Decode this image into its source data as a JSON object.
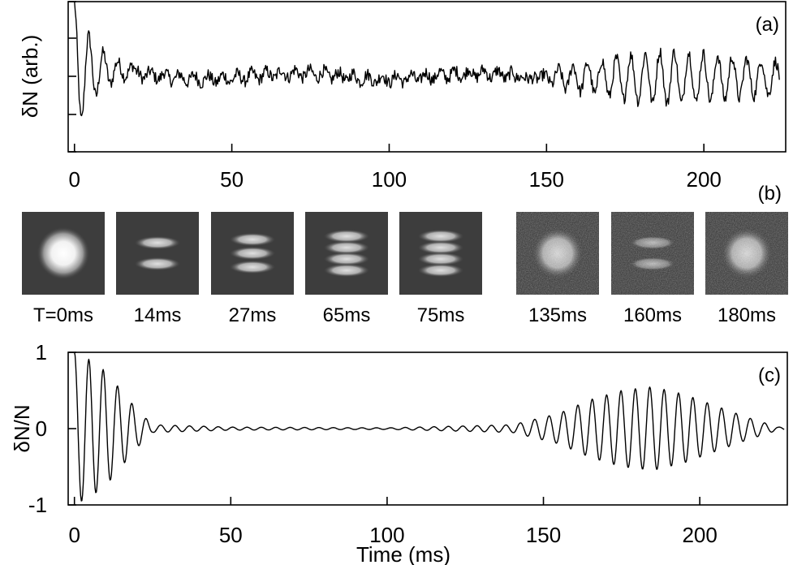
{
  "chart_data": [
    {
      "panel": "(a)",
      "type": "line",
      "ylabel": "δN (arb.)",
      "xlim": [
        -2,
        226
      ],
      "xticks": [
        0,
        50,
        100,
        150,
        200
      ],
      "xtick_labels": [
        "0",
        "50",
        "100",
        "150",
        "200"
      ],
      "series": [
        {
          "x": [
            0,
            2,
            5,
            8,
            11,
            14,
            18,
            25,
            35,
            50,
            70,
            90,
            110,
            130,
            145,
            155,
            165,
            175,
            187,
            200,
            215,
            224
          ],
          "y": [
            0.9,
            -0.9,
            0.65,
            -0.5,
            0.4,
            0.15,
            0.0,
            -0.05,
            -0.02,
            0.0,
            0.06,
            0.04,
            0.02,
            0.0,
            -0.02,
            0.2,
            0.3,
            0.4,
            0.5,
            0.45,
            0.35,
            0.3
          ]
        }
      ]
    },
    {
      "panel": "(b)",
      "type": "image-sequence",
      "frames": [
        {
          "label": "T=0ms",
          "pattern": "cloud"
        },
        {
          "label": "14ms",
          "pattern": "fringes-2"
        },
        {
          "label": "27ms",
          "pattern": "fringes-3"
        },
        {
          "label": "65ms",
          "pattern": "fringes-4"
        },
        {
          "label": "75ms",
          "pattern": "fringes-4"
        },
        {
          "label": "135ms",
          "pattern": "cloud-noisy"
        },
        {
          "label": "160ms",
          "pattern": "fringes-faint"
        },
        {
          "label": "180ms",
          "pattern": "cloud-noisy"
        }
      ]
    },
    {
      "panel": "(c)",
      "type": "line",
      "ylabel": "δN/N",
      "xlabel": "Time (ms)",
      "xlim": [
        -2,
        228
      ],
      "ylim": [
        -1,
        1
      ],
      "xticks": [
        0,
        50,
        100,
        150,
        200
      ],
      "xtick_labels": [
        "0",
        "50",
        "100",
        "150",
        "200"
      ],
      "yticks": [
        -1,
        0,
        1
      ],
      "ytick_labels": [
        "-1",
        "0",
        "1"
      ],
      "series": [
        {
          "x": [
            0,
            5,
            10,
            15,
            20,
            25,
            50,
            100,
            140,
            155,
            165,
            175,
            185,
            195,
            205,
            215,
            225
          ],
          "y": [
            1.0,
            0.9,
            0.75,
            0.5,
            0.25,
            0.05,
            0.02,
            0.01,
            0.05,
            0.2,
            0.38,
            0.5,
            0.55,
            0.45,
            0.3,
            0.15,
            0.02
          ]
        }
      ]
    }
  ]
}
